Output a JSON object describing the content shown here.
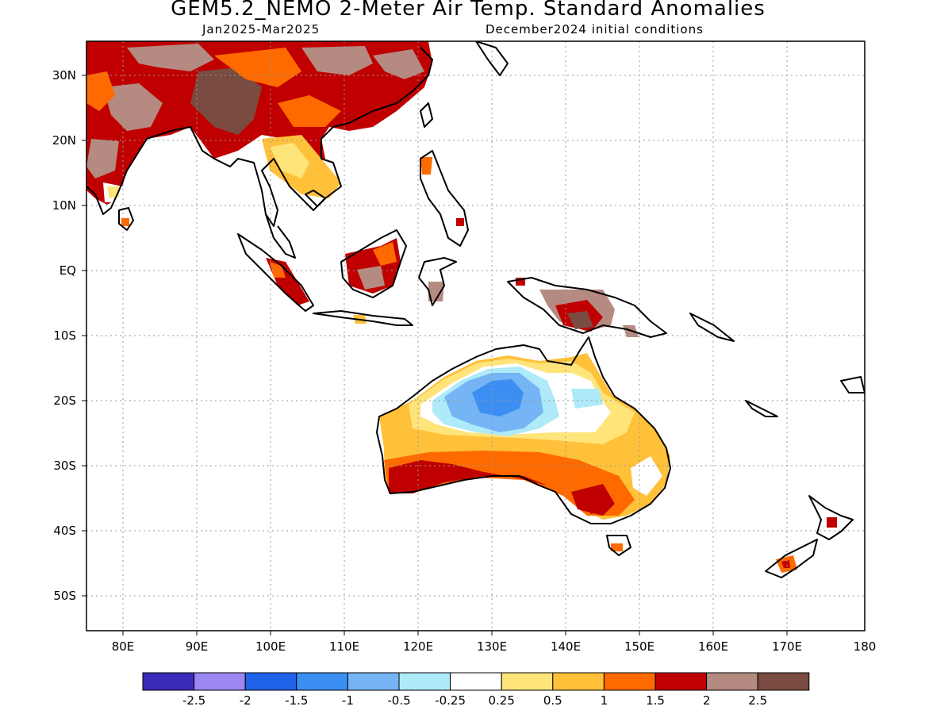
{
  "title": "GEM5.2_NEMO 2-Meter Air Temp. Standard Anomalies",
  "subtitle_left": "Jan2025-Mar2025",
  "subtitle_right": "December2024 initial conditions",
  "lon_ticks": [
    "80E",
    "90E",
    "100E",
    "110E",
    "120E",
    "130E",
    "140E",
    "150E",
    "160E",
    "170E",
    "180"
  ],
  "lat_ticks": [
    "30N",
    "20N",
    "10N",
    "EQ",
    "10S",
    "20S",
    "30S",
    "40S",
    "50S"
  ],
  "colorbar": {
    "colors": [
      "#3a2bb8",
      "#9b86f2",
      "#1f62e8",
      "#3c8ff2",
      "#75b4f5",
      "#aeeaf8",
      "#ffffff",
      "#ffe47a",
      "#ffc03a",
      "#ff6a00",
      "#c00000",
      "#b58a80",
      "#7a4b40"
    ],
    "labels": [
      "-2.5",
      "-2",
      "-1.5",
      "-1",
      "-0.5",
      "-0.25",
      "0.25",
      "0.5",
      "1",
      "1.5",
      "2",
      "2.5"
    ]
  },
  "colors": {
    "land_outline": "#000000",
    "grid": "#9a9a9a"
  }
}
